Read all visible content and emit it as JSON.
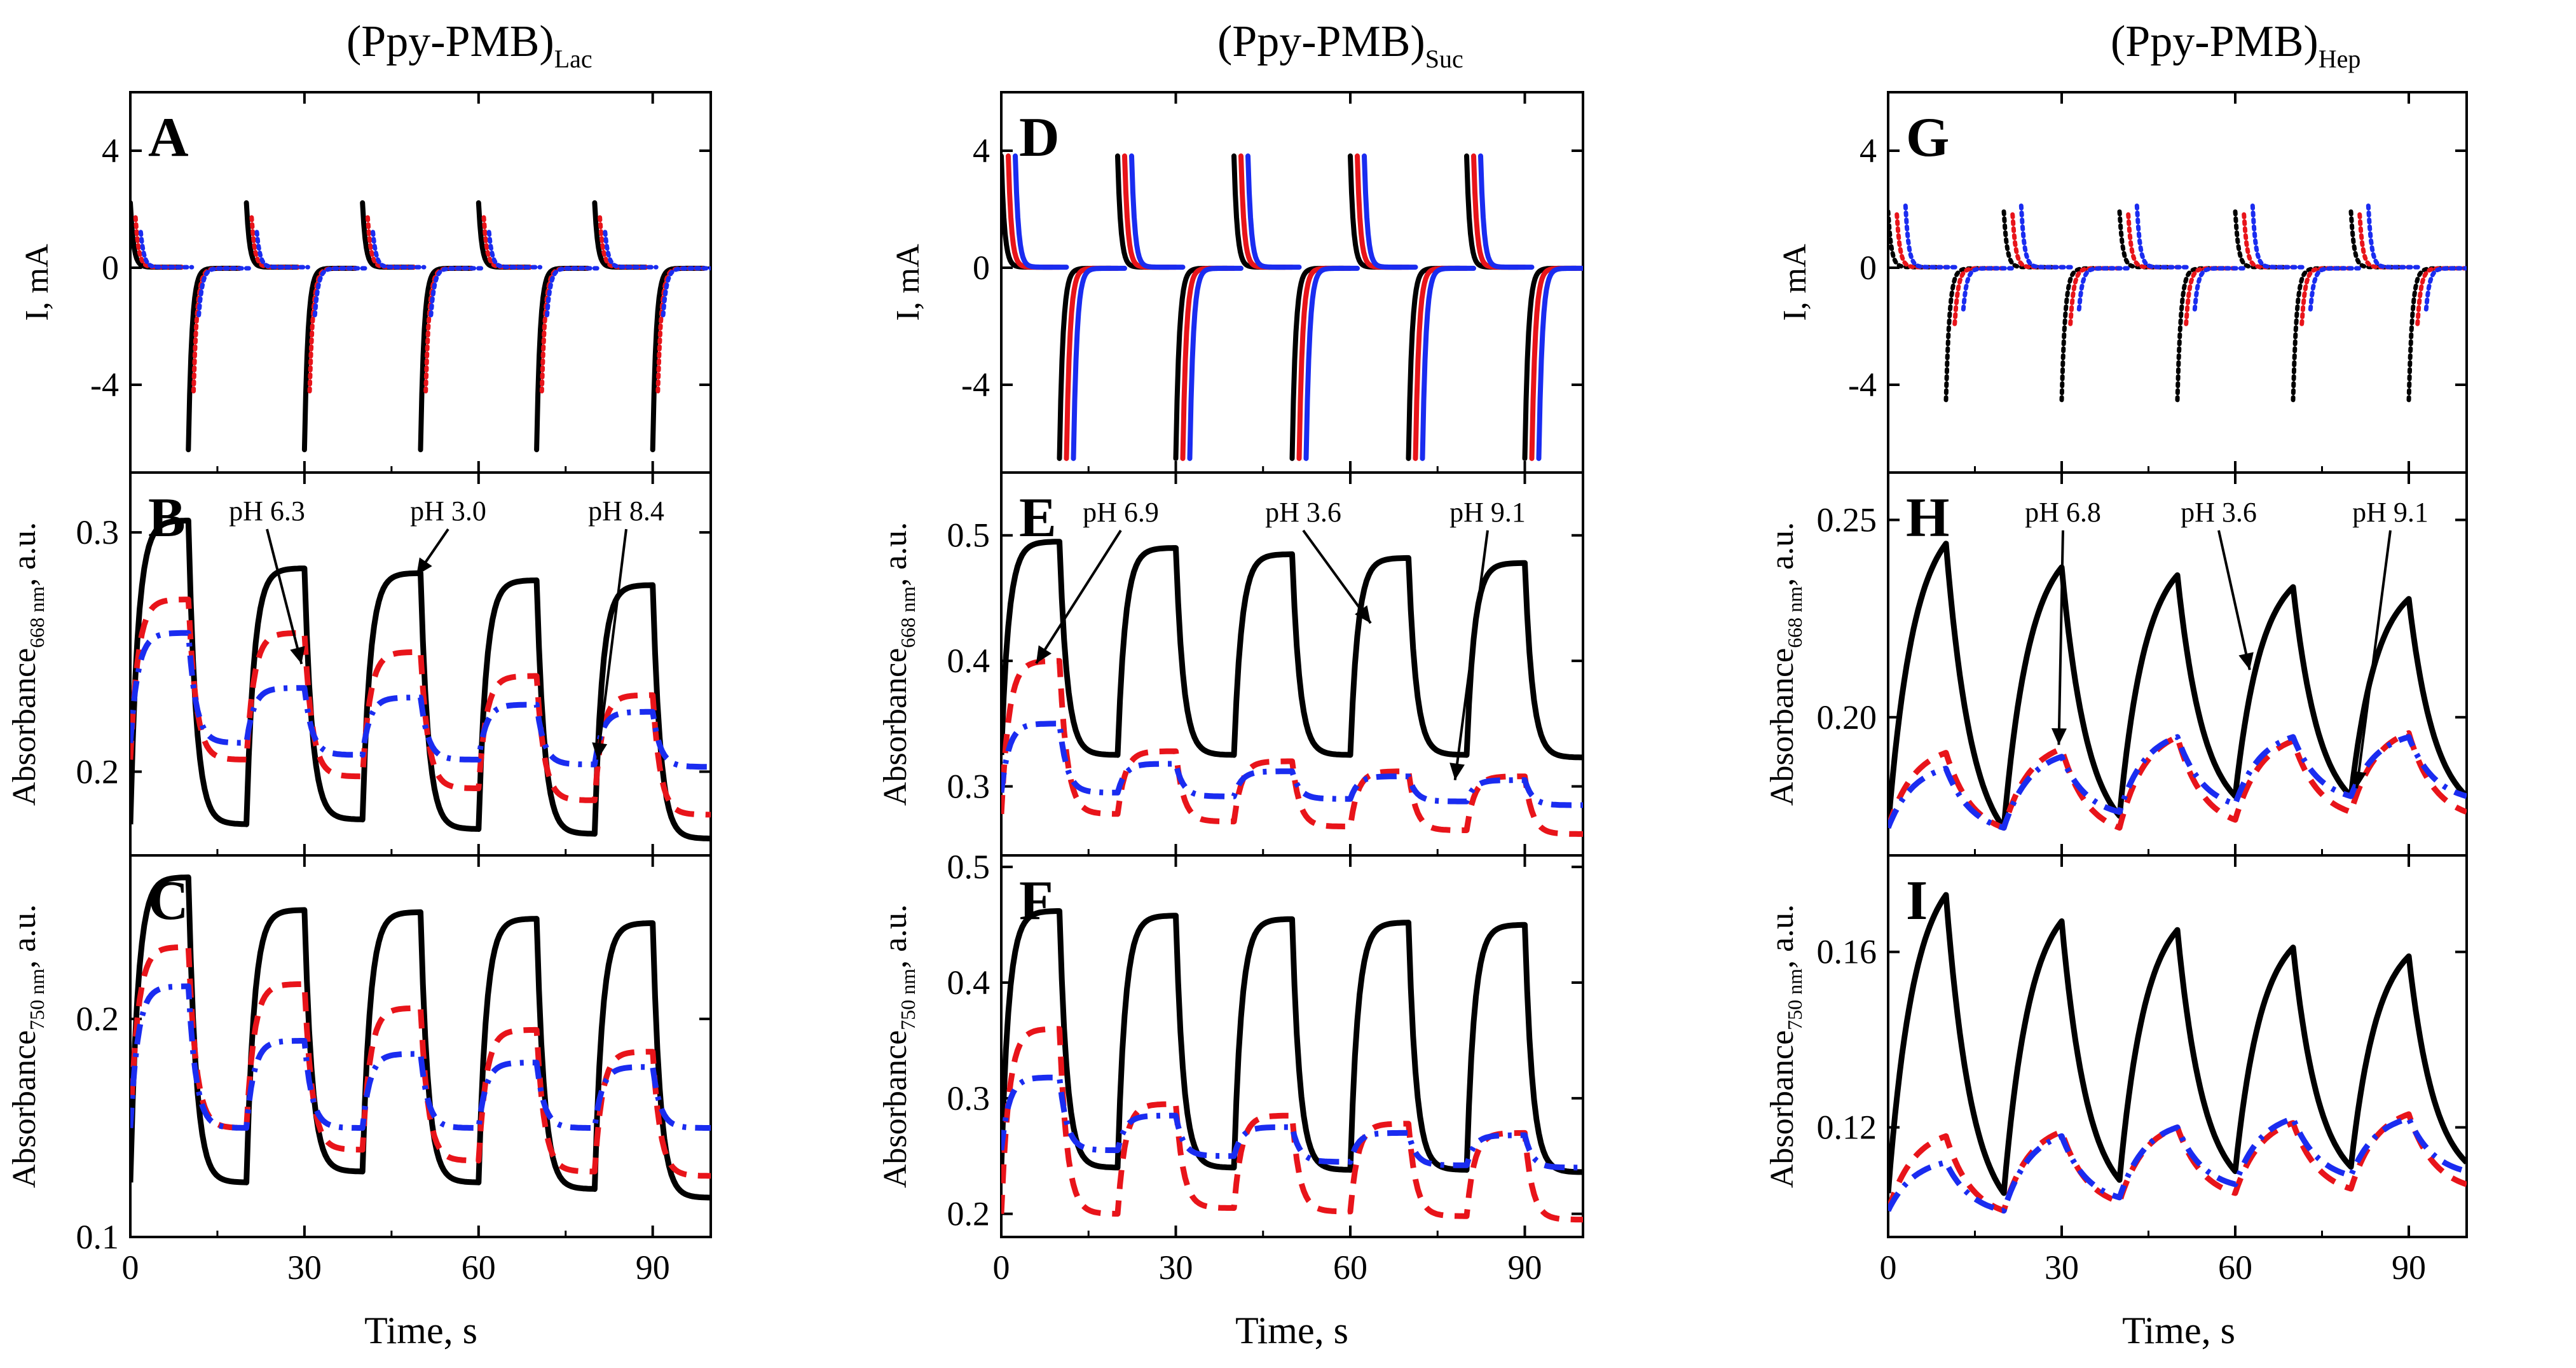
{
  "colors": {
    "black": "#000000",
    "red": "#e8141a",
    "blue": "#1a2cf0"
  },
  "columns": [
    {
      "title": "(Ppy-PMB)",
      "subscript": "Lac"
    },
    {
      "title": "(Ppy-PMB)",
      "subscript": "Suc"
    },
    {
      "title": "(Ppy-PMB)",
      "subscript": "Hep"
    }
  ],
  "axis_text": {
    "x_label": "Time, s",
    "current_label": "I, mA",
    "abs_label": "Absorbance",
    "abs_unit": ", a.u.",
    "sub_668": "668 nm",
    "sub_750": "750 nm"
  },
  "chart_data": [
    {
      "id": "A",
      "type": "line",
      "quantity": "current",
      "ylabel": "I, mA",
      "xlabel": "",
      "xlim": [
        0,
        100
      ],
      "ylim": [
        -7,
        6
      ],
      "yticks": [
        -4,
        0,
        4
      ],
      "yticklabels": [
        "-4",
        "0",
        "4"
      ],
      "xticks": [
        0,
        30,
        60,
        90
      ],
      "xticklabels": [],
      "series": [
        {
          "color": "black",
          "style": "solid",
          "anodic_peak": 2.2,
          "cathodic_peak": -6.2,
          "lag": 0
        },
        {
          "color": "red",
          "style": "dotted",
          "anodic_peak": 1.7,
          "cathodic_peak": -4.2,
          "lag": 0.9
        },
        {
          "color": "blue",
          "style": "dotted",
          "anodic_peak": 1.2,
          "cathodic_peak": -1.6,
          "lag": 1.8
        }
      ]
    },
    {
      "id": "B",
      "type": "line",
      "quantity": "absorbance_668",
      "ylabel": "Absorbance 668 nm, a.u.",
      "xlabel": "",
      "xlim": [
        0,
        100
      ],
      "ylim": [
        0.165,
        0.325
      ],
      "yticks": [
        0.2,
        0.3
      ],
      "yticklabels": [
        "0.2",
        "0.3"
      ],
      "xticks": [
        0,
        30,
        60,
        90
      ],
      "xticklabels": [],
      "series": [
        {
          "name": "pH 3.0",
          "color": "black",
          "style": "solid",
          "oxidized": [
            0.305,
            0.285,
            0.283,
            0.28,
            0.278
          ],
          "reduced": [
            0.178,
            0.18,
            0.176,
            0.174,
            0.172
          ]
        },
        {
          "name": "pH 6.3",
          "color": "red",
          "style": "dashed",
          "oxidized": [
            0.272,
            0.258,
            0.25,
            0.24,
            0.232
          ],
          "reduced": [
            0.205,
            0.198,
            0.193,
            0.188,
            0.182
          ]
        },
        {
          "name": "pH 8.4",
          "color": "blue",
          "style": "dashdot",
          "oxidized": [
            0.258,
            0.235,
            0.231,
            0.228,
            0.225
          ],
          "reduced": [
            0.212,
            0.207,
            0.205,
            0.203,
            0.202
          ]
        }
      ],
      "annotations": [
        {
          "text": "pH 6.3"
        },
        {
          "text": "pH 3.0"
        },
        {
          "text": "pH 8.4"
        }
      ]
    },
    {
      "id": "C",
      "type": "line",
      "quantity": "absorbance_750",
      "ylabel": "Absorbance 750 nm, a.u.",
      "xlabel": "Time, s",
      "xlim": [
        0,
        100
      ],
      "ylim": [
        0.1,
        0.275
      ],
      "yticks": [
        0.1,
        0.2
      ],
      "yticklabels": [
        "0.1",
        "0.2"
      ],
      "xticks": [
        0,
        30,
        60,
        90
      ],
      "xticklabels": [
        "0",
        "30",
        "60",
        "90"
      ],
      "series": [
        {
          "name": "pH 3.0",
          "color": "black",
          "style": "solid",
          "oxidized": [
            0.265,
            0.25,
            0.249,
            0.246,
            0.244
          ],
          "reduced": [
            0.125,
            0.13,
            0.125,
            0.122,
            0.118
          ]
        },
        {
          "name": "pH 6.3",
          "color": "red",
          "style": "dashed",
          "oxidized": [
            0.233,
            0.216,
            0.205,
            0.195,
            0.185
          ],
          "reduced": [
            0.15,
            0.14,
            0.135,
            0.13,
            0.128
          ]
        },
        {
          "name": "pH 8.4",
          "color": "blue",
          "style": "dashdot",
          "oxidized": [
            0.215,
            0.19,
            0.184,
            0.18,
            0.178
          ],
          "reduced": [
            0.15,
            0.15,
            0.15,
            0.15,
            0.15
          ]
        }
      ]
    },
    {
      "id": "D",
      "type": "line",
      "quantity": "current",
      "ylabel": "I, mA",
      "xlabel": "",
      "xlim": [
        0,
        100
      ],
      "ylim": [
        -7,
        6
      ],
      "yticks": [
        -4,
        0,
        4
      ],
      "yticklabels": [
        "-4",
        "0",
        "4"
      ],
      "xticks": [
        0,
        30,
        60,
        90
      ],
      "xticklabels": [],
      "series": [
        {
          "color": "black",
          "style": "solid",
          "anodic_peak": 3.8,
          "cathodic_peak": -6.5,
          "lag": 0
        },
        {
          "color": "red",
          "style": "solid",
          "anodic_peak": 3.8,
          "cathodic_peak": -6.5,
          "lag": 1.2
        },
        {
          "color": "blue",
          "style": "solid",
          "anodic_peak": 3.8,
          "cathodic_peak": -6.5,
          "lag": 2.4
        }
      ]
    },
    {
      "id": "E",
      "type": "line",
      "quantity": "absorbance_668",
      "ylabel": "Absorbance 668 nm, a.u.",
      "xlabel": "",
      "xlim": [
        0,
        100
      ],
      "ylim": [
        0.245,
        0.55
      ],
      "yticks": [
        0.3,
        0.4,
        0.5
      ],
      "yticklabels": [
        "0.3",
        "0.4",
        "0.5"
      ],
      "xticks": [
        0,
        30,
        60,
        90
      ],
      "xticklabels": [],
      "series": [
        {
          "name": "pH 3.6",
          "color": "black",
          "style": "solid",
          "oxidized": [
            0.495,
            0.49,
            0.485,
            0.482,
            0.478
          ],
          "reduced": [
            0.325,
            0.325,
            0.325,
            0.325,
            0.323
          ]
        },
        {
          "name": "pH 6.9",
          "color": "red",
          "style": "dashed",
          "oxidized": [
            0.4,
            0.328,
            0.32,
            0.312,
            0.308
          ],
          "reduced": [
            0.278,
            0.272,
            0.268,
            0.265,
            0.262
          ]
        },
        {
          "name": "pH 9.1",
          "color": "blue",
          "style": "dashdot",
          "oxidized": [
            0.35,
            0.318,
            0.312,
            0.308,
            0.305
          ],
          "reduced": [
            0.295,
            0.292,
            0.29,
            0.288,
            0.285
          ]
        }
      ],
      "annotations": [
        {
          "text": "pH 6.9"
        },
        {
          "text": "pH 3.6"
        },
        {
          "text": "pH 9.1"
        }
      ]
    },
    {
      "id": "F",
      "type": "line",
      "quantity": "absorbance_750",
      "ylabel": "Absorbance 750 nm, a.u.",
      "xlabel": "Time, s",
      "xlim": [
        0,
        100
      ],
      "ylim": [
        0.18,
        0.51
      ],
      "yticks": [
        0.2,
        0.3,
        0.4,
        0.5
      ],
      "yticklabels": [
        "0.2",
        "0.3",
        "0.4",
        "0.5"
      ],
      "xticks": [
        0,
        30,
        60,
        90
      ],
      "xticklabels": [
        "0",
        "30",
        "60",
        "90"
      ],
      "series": [
        {
          "name": "pH 3.6",
          "color": "black",
          "style": "solid",
          "oxidized": [
            0.462,
            0.458,
            0.455,
            0.452,
            0.45
          ],
          "reduced": [
            0.24,
            0.24,
            0.238,
            0.238,
            0.236
          ]
        },
        {
          "name": "pH 6.9",
          "color": "red",
          "style": "dashed",
          "oxidized": [
            0.36,
            0.295,
            0.285,
            0.278,
            0.27
          ],
          "reduced": [
            0.2,
            0.205,
            0.202,
            0.198,
            0.195
          ]
        },
        {
          "name": "pH 9.1",
          "color": "blue",
          "style": "dashdot",
          "oxidized": [
            0.318,
            0.285,
            0.275,
            0.27,
            0.268
          ],
          "reduced": [
            0.255,
            0.25,
            0.245,
            0.242,
            0.24
          ]
        }
      ]
    },
    {
      "id": "G",
      "type": "line",
      "quantity": "current",
      "ylabel": "I, mA",
      "xlabel": "",
      "xlim": [
        0,
        100
      ],
      "ylim": [
        -7,
        6
      ],
      "yticks": [
        -4,
        0,
        4
      ],
      "yticklabels": [
        "-4",
        "0",
        "4"
      ],
      "xticks": [
        0,
        30,
        60,
        90
      ],
      "xticklabels": [],
      "series": [
        {
          "color": "black",
          "style": "dotted",
          "anodic_peak": 1.9,
          "cathodic_peak": -4.5,
          "lag": 0
        },
        {
          "color": "red",
          "style": "dotted",
          "anodic_peak": 1.8,
          "cathodic_peak": -1.9,
          "lag": 1.5
        },
        {
          "color": "blue",
          "style": "dotted",
          "anodic_peak": 2.1,
          "cathodic_peak": -1.4,
          "lag": 3.0
        }
      ]
    },
    {
      "id": "H",
      "type": "line",
      "quantity": "absorbance_668",
      "ylabel": "Absorbance 668 nm, a.u.",
      "xlabel": "",
      "xlim": [
        0,
        100
      ],
      "ylim": [
        0.165,
        0.262
      ],
      "yticks": [
        0.2,
        0.25
      ],
      "yticklabels": [
        "0.20",
        "0.25"
      ],
      "xticks": [
        0,
        30,
        60,
        90
      ],
      "xticklabels": [],
      "series": [
        {
          "name": "pH 3.6",
          "color": "black",
          "style": "solid",
          "shape": "sawtooth",
          "oxidized": [
            0.244,
            0.238,
            0.236,
            0.233,
            0.23
          ],
          "reduced": [
            0.172,
            0.175,
            0.18,
            0.18,
            0.18
          ]
        },
        {
          "name": "pH 6.8",
          "color": "red",
          "style": "dashed",
          "shape": "sawtooth",
          "oxidized": [
            0.191,
            0.192,
            0.195,
            0.194,
            0.196
          ],
          "reduced": [
            0.172,
            0.172,
            0.174,
            0.176,
            0.176
          ]
        },
        {
          "name": "pH 9.1",
          "color": "blue",
          "style": "dashdot",
          "shape": "sawtooth",
          "oxidized": [
            0.187,
            0.19,
            0.195,
            0.195,
            0.195
          ],
          "reduced": [
            0.172,
            0.176,
            0.178,
            0.18,
            0.18
          ]
        }
      ],
      "annotations": [
        {
          "text": "pH 6.8"
        },
        {
          "text": "pH 3.6"
        },
        {
          "text": "pH 9.1"
        }
      ]
    },
    {
      "id": "I",
      "type": "line",
      "quantity": "absorbance_750",
      "ylabel": "Absorbance 750 nm, a.u.",
      "xlabel": "Time, s",
      "xlim": [
        0,
        100
      ],
      "ylim": [
        0.095,
        0.182
      ],
      "yticks": [
        0.12,
        0.16
      ],
      "yticklabels": [
        "0.12",
        "0.16"
      ],
      "xticks": [
        0,
        30,
        60,
        90
      ],
      "xticklabels": [
        "0",
        "30",
        "60",
        "90"
      ],
      "series": [
        {
          "name": "pH 3.6",
          "color": "black",
          "style": "solid",
          "shape": "sawtooth",
          "oxidized": [
            0.173,
            0.167,
            0.165,
            0.161,
            0.159
          ],
          "reduced": [
            0.105,
            0.108,
            0.11,
            0.111,
            0.112
          ]
        },
        {
          "name": "pH 6.8",
          "color": "red",
          "style": "dashed",
          "shape": "sawtooth",
          "oxidized": [
            0.118,
            0.119,
            0.12,
            0.121,
            0.123
          ],
          "reduced": [
            0.101,
            0.103,
            0.105,
            0.106,
            0.107
          ]
        },
        {
          "name": "pH 9.1",
          "color": "blue",
          "style": "dashdot",
          "shape": "sawtooth",
          "oxidized": [
            0.112,
            0.118,
            0.12,
            0.122,
            0.122
          ],
          "reduced": [
            0.101,
            0.104,
            0.107,
            0.109,
            0.11
          ]
        }
      ]
    }
  ]
}
